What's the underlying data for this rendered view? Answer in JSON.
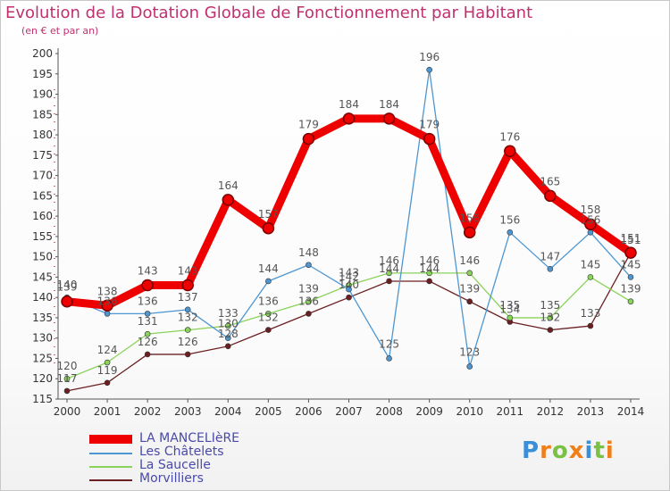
{
  "title": "Evolution de la Dotation Globale de Fonctionnement par Habitant",
  "subtitle": "(en € et par an)",
  "logo": {
    "text": "Proxiti",
    "colors": [
      "#3a8fd6",
      "#f07f1a",
      "#7ac143",
      "#f07f1a",
      "#3a8fd6",
      "#7ac143",
      "#f07f1a"
    ]
  },
  "chart_data": {
    "type": "line",
    "x": [
      "2000",
      "2001",
      "2002",
      "2003",
      "2004",
      "2005",
      "2006",
      "2007",
      "2008",
      "2009",
      "2010",
      "2011",
      "2012",
      "2013",
      "2014"
    ],
    "ylim": [
      115,
      200
    ],
    "yticks": [
      115,
      120,
      125,
      130,
      135,
      140,
      145,
      150,
      155,
      160,
      165,
      170,
      175,
      180,
      185,
      190,
      195,
      200
    ],
    "grid": false,
    "series": [
      {
        "name": "LA MANCELIèRE",
        "color": "#ee0000",
        "values": [
          139,
          138,
          143,
          143,
          164,
          157,
          179,
          184,
          184,
          179,
          156,
          176,
          165,
          158,
          151
        ]
      },
      {
        "name": "Les Châtelets",
        "color": "#4d96d1",
        "values": [
          140,
          136,
          136,
          137,
          130,
          144,
          148,
          142,
          125,
          196,
          123,
          156,
          147,
          156,
          145
        ]
      },
      {
        "name": "La Saucelle",
        "color": "#8ad35a",
        "values": [
          120,
          124,
          131,
          132,
          133,
          136,
          139,
          143,
          146,
          146,
          146,
          135,
          135,
          145,
          139
        ]
      },
      {
        "name": "Morvilliers",
        "color": "#6b1f22",
        "values": [
          117,
          119,
          126,
          126,
          128,
          132,
          136,
          140,
          144,
          144,
          139,
          134,
          132,
          133,
          151
        ]
      }
    ]
  }
}
